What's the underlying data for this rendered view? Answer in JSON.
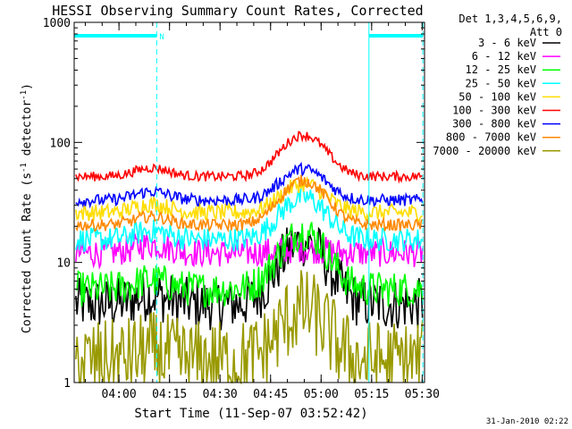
{
  "chart_data": {
    "type": "line",
    "title": "HESSI Observing Summary Count Rates, Corrected",
    "xlabel": "Start Time (11-Sep-07 03:52:42)",
    "ylabel_main": "Corrected Count Rate (s",
    "ylabel_sup1": "-1",
    "ylabel_mid": " detector",
    "ylabel_sup2": "-1",
    "ylabel_end": ")",
    "yscale": "log",
    "ylim": [
      1,
      1000
    ],
    "xlim_minutes": [
      -6,
      98
    ],
    "x_start_time": "03:52:42",
    "x_ticks": [
      {
        "label": "04:00",
        "minute": 7.3
      },
      {
        "label": "04:15",
        "minute": 22.3
      },
      {
        "label": "04:30",
        "minute": 37.3
      },
      {
        "label": "04:45",
        "minute": 52.3
      },
      {
        "label": "05:00",
        "minute": 67.3
      },
      {
        "label": "05:15",
        "minute": 82.3
      },
      {
        "label": "05:30",
        "minute": 97.3
      }
    ],
    "y_ticks": [
      {
        "label": "1",
        "value": 1
      },
      {
        "label": "10",
        "value": 10
      },
      {
        "label": "100",
        "value": 100
      },
      {
        "label": "1000",
        "value": 1000
      }
    ],
    "legend_header": [
      "Det 1,3,4,5,6,9,",
      "Att 0"
    ],
    "legend_position": "right",
    "series": [
      {
        "name": "3 - 6 keV",
        "color": "#000000",
        "baseline": 4.5,
        "peak": 15,
        "noise": 0.22
      },
      {
        "name": "6 - 12 keV",
        "color": "#ff00ff",
        "baseline": 12,
        "peak": 13,
        "noise": 0.12
      },
      {
        "name": "12 - 25 keV",
        "color": "#00ff00",
        "baseline": 6,
        "peak": 18,
        "noise": 0.15
      },
      {
        "name": "25 - 50 keV",
        "color": "#00ffff",
        "baseline": 15.5,
        "peak": 35,
        "noise": 0.1
      },
      {
        "name": "50 - 100 keV",
        "color": "#ffdd00",
        "baseline": 26,
        "peak": 45,
        "noise": 0.07
      },
      {
        "name": "100 - 300 keV",
        "color": "#ff0000",
        "baseline": 52,
        "peak": 115,
        "noise": 0.04
      },
      {
        "name": "300 - 800 keV",
        "color": "#0000ff",
        "baseline": 33,
        "peak": 60,
        "noise": 0.05
      },
      {
        "name": "800 - 7000 keV",
        "color": "#ff8800",
        "baseline": 20.5,
        "peak": 48,
        "noise": 0.05
      },
      {
        "name": "7000 - 20000 keV",
        "color": "#999900",
        "baseline": 1.5,
        "peak": 4,
        "noise": 0.35
      }
    ],
    "flag_bars": [
      {
        "start_minute": -6,
        "end_minute": 18.5,
        "label": "N"
      },
      {
        "start_minute": 81.5,
        "end_minute": 97.5,
        "label": ""
      }
    ],
    "vlines_dashed_minutes": [
      18.5,
      97.5
    ],
    "vlines_solid_minutes": [
      81.5
    ],
    "flag_color": "#00ffff"
  },
  "footer_date": "31-Jan-2010 02:22"
}
